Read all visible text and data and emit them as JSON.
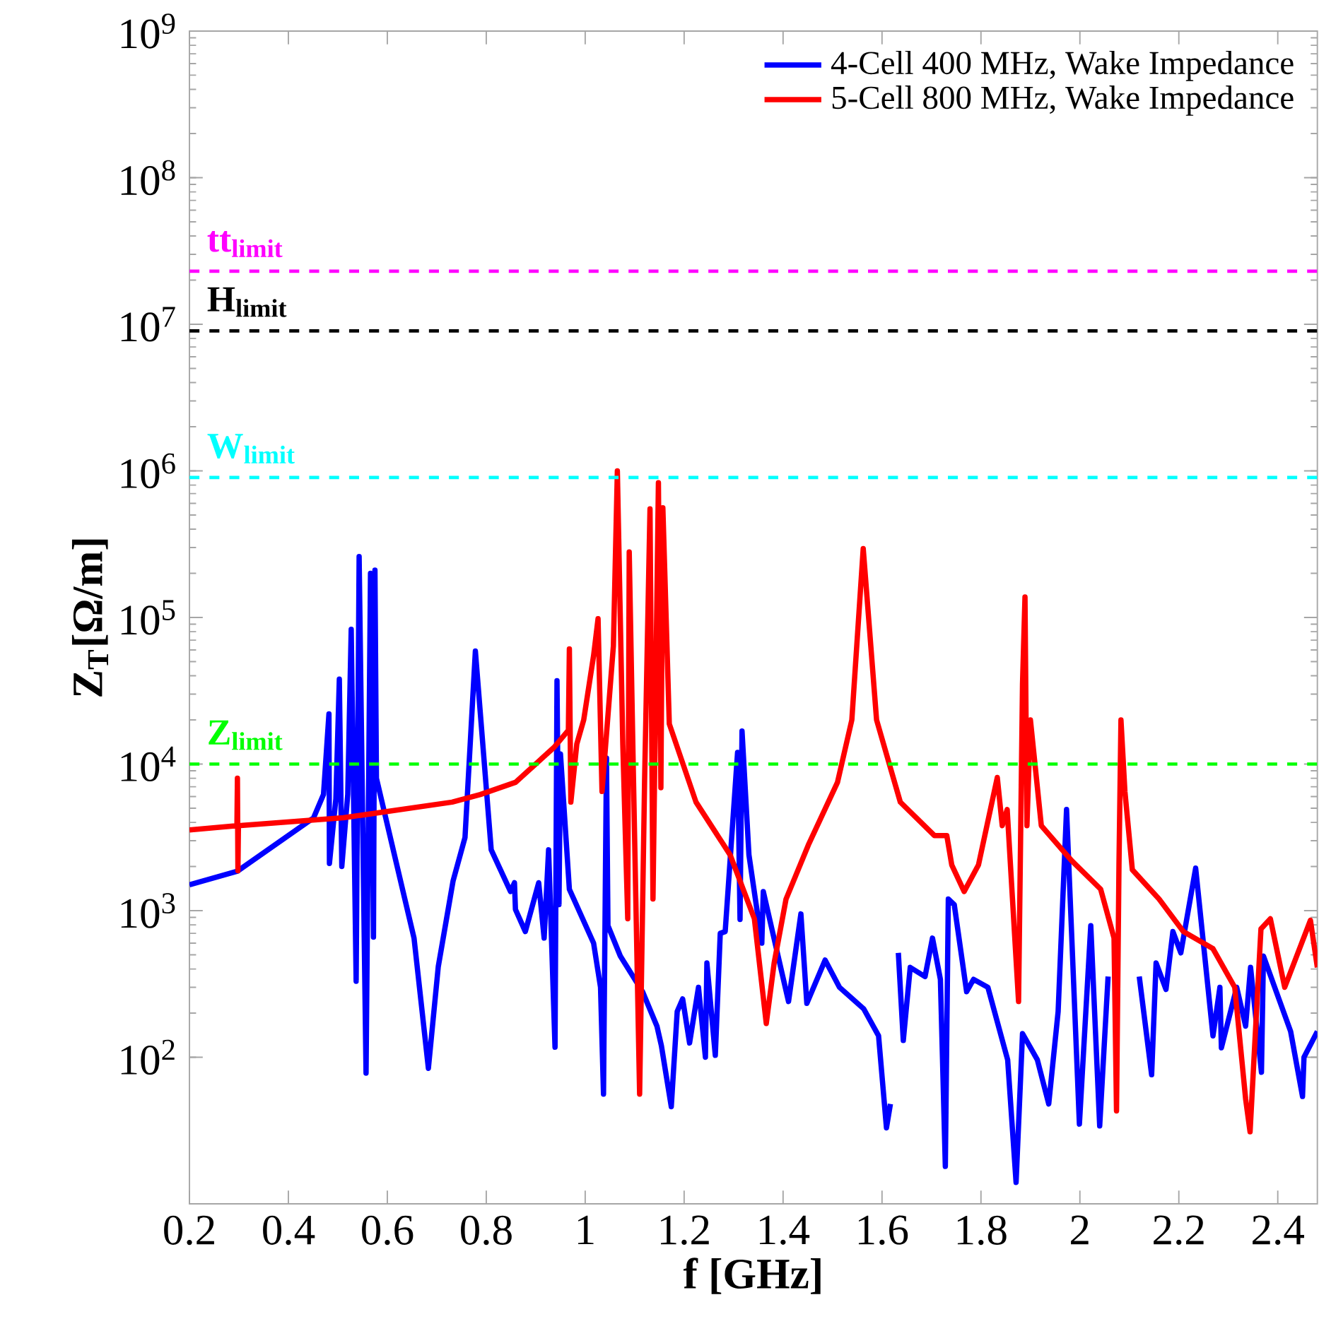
{
  "chart_data": {
    "type": "line",
    "xlabel": "f [GHz]",
    "ylabel": "Z$_{T}$[Ω/m]",
    "log": "y",
    "legend": "top right",
    "xlim": [
      0.2,
      2.48
    ],
    "xticks": [
      0.2,
      0.4,
      0.6,
      0.8,
      1,
      1.2,
      1.4,
      1.6,
      1.8,
      2,
      2.2,
      2.4
    ],
    "ylim": [
      10,
      1000000000
    ],
    "yticks": [
      {
        "value": 100,
        "label": "10$^{2}$"
      },
      {
        "value": 1000,
        "label": "10$^{3}$"
      },
      {
        "value": 10000,
        "label": "10$^{4}$"
      },
      {
        "value": 100000,
        "label": "10$^{5}$"
      },
      {
        "value": 1000000,
        "label": "10$^{6}$"
      },
      {
        "value": 10000000,
        "label": "10$^{7}$"
      },
      {
        "value": 100000000,
        "label": "10$^{8}$"
      },
      {
        "value": 1000000000,
        "label": "10$^{9}$"
      }
    ],
    "ref_lines": [
      {
        "axis": "y",
        "value": 23000000,
        "label": "tt$_{limit}$",
        "color": "#ff00ff",
        "line_style": "dashed"
      },
      {
        "axis": "y",
        "value": 9000000,
        "label": "H$_{limit}$",
        "color": "#000000",
        "line_style": "dashed"
      },
      {
        "axis": "y",
        "value": 900000,
        "label": "W$_{limit}$",
        "color": "#00ffff",
        "line_style": "dashed"
      },
      {
        "axis": "y",
        "value": 10000,
        "label": "Z$_{limit}$",
        "color": "#00ff00",
        "line_style": "dashed"
      }
    ],
    "series": [
      {
        "name": "4-Cell 400 MHz, Wake Impedance",
        "color": "#0000ff",
        "x": [
          0.2,
          0.297,
          0.451,
          0.471,
          0.482,
          0.483,
          0.496,
          0.503,
          0.508,
          0.52,
          0.527,
          0.537,
          0.543,
          0.557,
          0.566,
          0.57,
          0.572,
          0.575,
          0.578,
          0.617,
          0.654,
          0.683,
          0.703,
          0.733,
          0.757,
          0.778,
          0.81,
          0.849,
          0.857,
          0.859,
          0.879,
          0.906,
          0.917,
          0.926,
          0.939,
          0.943,
          0.947,
          0.95,
          0.968,
          1.017,
          1.031,
          1.037,
          1.043,
          1.046,
          1.071,
          1.116,
          1.145,
          1.154,
          1.174,
          1.186,
          1.197,
          1.211,
          1.229,
          1.243,
          1.246,
          1.263,
          1.273,
          1.283,
          1.308,
          1.313,
          1.317,
          1.331,
          1.357,
          1.36,
          1.411,
          1.436,
          1.448,
          1.485,
          1.514,
          1.563,
          1.593,
          1.609,
          1.617,
          1.623,
          1.633,
          1.643,
          1.657,
          1.687,
          1.702,
          1.718,
          1.728,
          1.734,
          1.746,
          1.771,
          1.785,
          1.814,
          1.854,
          1.871,
          1.884,
          1.914,
          1.937,
          1.956,
          1.973,
          1.999,
          2.022,
          2.04,
          2.057,
          2.089,
          2.12,
          2.145,
          2.154,
          2.174,
          2.188,
          2.204,
          2.234,
          2.269,
          2.283,
          2.286,
          2.317,
          2.335,
          2.345,
          2.367,
          2.371,
          2.397,
          2.426,
          2.45,
          2.453,
          2.48
        ],
        "values": [
          1500,
          1860,
          4300,
          6200,
          22000,
          2100,
          5800,
          38000,
          2000,
          6200,
          83000,
          330,
          260000,
          78,
          200000,
          5800,
          660,
          210000,
          8000,
          2200,
          650,
          84,
          415,
          1600,
          3150,
          59000,
          2600,
          1350,
          1550,
          1020,
          720,
          1550,
          650,
          2600,
          117,
          37000,
          1100,
          11700,
          1400,
          600,
          300,
          56,
          11000,
          790,
          490,
          280,
          163,
          120,
          46,
          205,
          250,
          125,
          300,
          100,
          440,
          103,
          700,
          720,
          12000,
          870,
          16800,
          2400,
          600,
          1350,
          240,
          950,
          233,
          460,
          300,
          214,
          140,
          33,
          48,
          null,
          515,
          130,
          410,
          355,
          650,
          340,
          18,
          1200,
          1100,
          280,
          340,
          300,
          96,
          14,
          145,
          96,
          48,
          205,
          4900,
          35,
          790,
          34,
          355,
          null,
          355,
          76,
          440,
          290,
          720,
          515,
          1950,
          140,
          300,
          116,
          300,
          163,
          410,
          79,
          490,
          280,
          150,
          54,
          100,
          150
        ]
      },
      {
        "name": "5-Cell 800 MHz, Wake Impedance",
        "color": "#ff0000",
        "x": [
          0.2,
          0.296,
          0.297,
          0.298,
          0.299,
          0.511,
          0.731,
          0.788,
          0.859,
          0.937,
          0.966,
          0.968,
          0.971,
          0.983,
          0.997,
          1.017,
          1.026,
          1.034,
          1.057,
          1.065,
          1.076,
          1.086,
          1.089,
          1.097,
          1.11,
          1.12,
          1.131,
          1.137,
          1.148,
          1.153,
          1.157,
          1.17,
          1.224,
          1.293,
          1.342,
          1.366,
          1.382,
          1.406,
          1.451,
          1.51,
          1.539,
          1.562,
          1.589,
          1.637,
          1.706,
          1.731,
          1.741,
          1.766,
          1.795,
          1.833,
          1.843,
          1.853,
          1.876,
          1.884,
          1.889,
          1.893,
          1.9,
          1.922,
          1.983,
          2.042,
          2.069,
          2.074,
          2.079,
          2.083,
          2.091,
          2.106,
          2.16,
          2.209,
          2.269,
          2.313,
          2.335,
          2.344,
          2.366,
          2.385,
          2.414,
          2.466,
          2.48
        ],
        "values": [
          3550,
          3800,
          8000,
          1870,
          3800,
          4300,
          5500,
          6200,
          7500,
          13000,
          17000,
          61000,
          5500,
          13700,
          20000,
          55000,
          98000,
          6500,
          64000,
          1000000,
          13700,
          880,
          280000,
          10000,
          56,
          7500,
          550000,
          1200,
          830000,
          6900,
          560000,
          18800,
          5500,
          2400,
          880,
          170,
          440,
          1200,
          2800,
          7500,
          20000,
          295000,
          20000,
          5500,
          3250,
          3250,
          2050,
          1350,
          2050,
          8100,
          3800,
          4900,
          240,
          35000,
          138000,
          3800,
          20000,
          3800,
          2200,
          1400,
          650,
          43,
          2050,
          20000,
          6500,
          1900,
          1200,
          720,
          550,
          300,
          52,
          31,
          750,
          880,
          300,
          860,
          410
        ]
      }
    ]
  }
}
